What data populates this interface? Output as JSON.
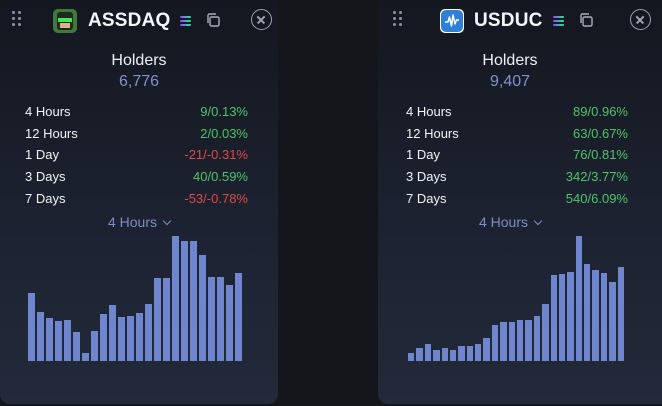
{
  "colors": {
    "positive": "#4fc46a",
    "negative": "#e04848",
    "accent": "#7f92cf",
    "bar": "#6f86cf"
  },
  "cards": [
    {
      "token_name": "ASSDAQ",
      "icon": "assdaq-logo-icon",
      "holders_label": "Holders",
      "holders_count": "6,776",
      "stats": [
        {
          "label": "4 Hours",
          "change": "9",
          "sep": "/",
          "pct": "0.13%",
          "trend": "up"
        },
        {
          "label": "12 Hours",
          "change": "2",
          "sep": "/",
          "pct": "0.03%",
          "trend": "up"
        },
        {
          "label": "1 Day",
          "change": "-21",
          "sep": "/",
          "pct": "-0.31%",
          "trend": "down"
        },
        {
          "label": "3 Days",
          "change": "40",
          "sep": "/",
          "pct": "0.59%",
          "trend": "up"
        },
        {
          "label": "7 Days",
          "change": "-53",
          "sep": "/",
          "pct": "-0.78%",
          "trend": "down"
        }
      ],
      "range_label": "4 Hours",
      "chart_data": {
        "type": "bar",
        "values": [
          51,
          35,
          30,
          27,
          28,
          18,
          0,
          19,
          33,
          41,
          31,
          32,
          34,
          42,
          64,
          64,
          100,
          96,
          96,
          84,
          65,
          65,
          58,
          68
        ],
        "ylim": [
          0,
          100
        ]
      }
    },
    {
      "token_name": "USDUC",
      "icon": "usduc-logo-icon",
      "holders_label": "Holders",
      "holders_count": "9,407",
      "stats": [
        {
          "label": "4 Hours",
          "change": "89",
          "sep": "/",
          "pct": "0.96%",
          "trend": "up"
        },
        {
          "label": "12 Hours",
          "change": "63",
          "sep": "/",
          "pct": "0.67%",
          "trend": "up"
        },
        {
          "label": "1 Day",
          "change": "76",
          "sep": "/",
          "pct": "0.81%",
          "trend": "up"
        },
        {
          "label": "3 Days",
          "change": "342",
          "sep": "/",
          "pct": "3.77%",
          "trend": "up"
        },
        {
          "label": "7 Days",
          "change": "540",
          "sep": "/",
          "pct": "6.09%",
          "trend": "up"
        }
      ],
      "range_label": "4 Hours",
      "chart_data": {
        "type": "bar",
        "values": [
          0,
          5,
          9,
          3,
          5,
          3,
          7,
          7,
          9,
          15,
          28,
          31,
          31,
          33,
          33,
          37,
          49,
          78,
          79,
          81,
          117,
          89,
          83,
          80,
          71,
          86
        ],
        "ylim": [
          0,
          117
        ]
      }
    }
  ]
}
